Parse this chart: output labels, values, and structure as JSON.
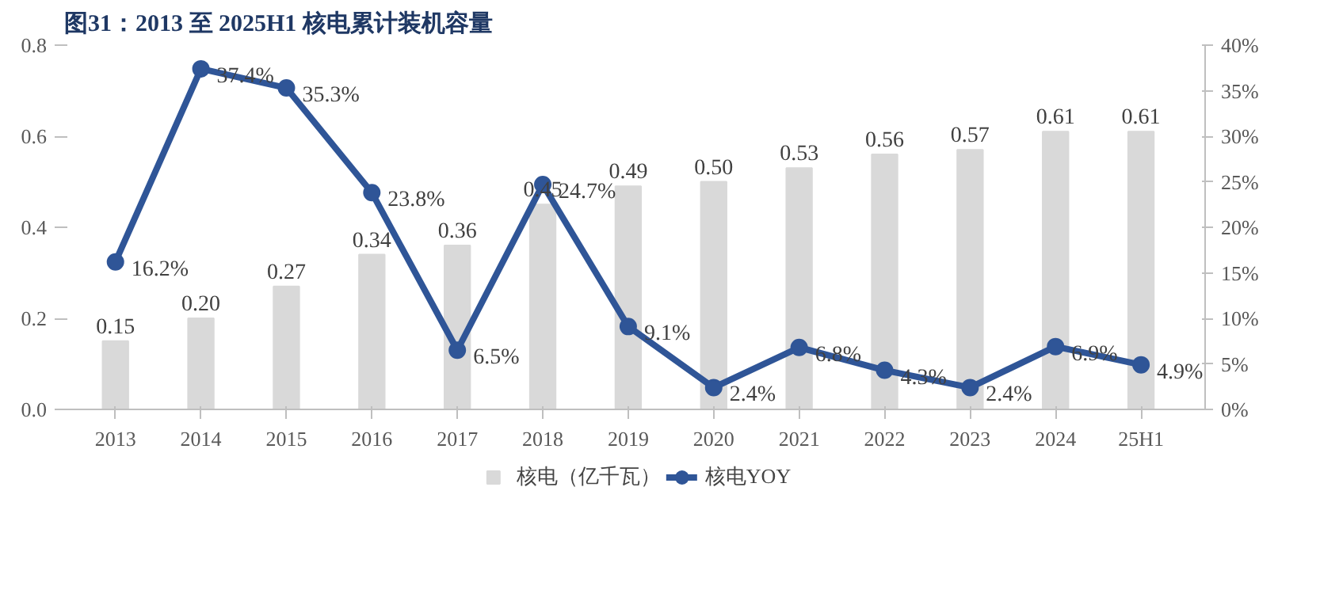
{
  "chart_data": {
    "type": "bar",
    "title": "图31：2013 至 2025H1 核电累计装机容量",
    "categories": [
      "2013",
      "2014",
      "2015",
      "2016",
      "2017",
      "2018",
      "2019",
      "2020",
      "2021",
      "2022",
      "2023",
      "2024",
      "25H1"
    ],
    "series": [
      {
        "name": "核电（亿千瓦）",
        "color": "#d9d9d9",
        "values": [
          0.15,
          0.2,
          0.27,
          0.34,
          0.36,
          0.45,
          0.49,
          0.5,
          0.53,
          0.56,
          0.57,
          0.61,
          0.61
        ],
        "value_labels": [
          "0.15",
          "0.20",
          "0.27",
          "0.34",
          "0.36",
          "0.45",
          "0.49",
          "0.50",
          "0.53",
          "0.56",
          "0.57",
          "0.61",
          "0.61"
        ]
      },
      {
        "name": "核电YOY",
        "type": "line",
        "axis": "y2",
        "color": "#2f5597",
        "marker": "circle",
        "values": [
          16.2,
          37.4,
          35.3,
          23.8,
          6.5,
          24.7,
          9.1,
          2.4,
          6.8,
          4.3,
          2.4,
          6.9,
          4.9
        ],
        "value_labels": [
          "16.2%",
          "37.4%",
          "35.3%",
          "23.8%",
          "6.5%",
          "24.7%",
          "9.1%",
          "2.4%",
          "6.8%",
          "4.3%",
          "2.4%",
          "6.9%",
          "4.9%"
        ]
      }
    ],
    "ylim": [
      0,
      0.8
    ],
    "yticks": [
      {
        "value": 0,
        "label": "0.0"
      },
      0.2,
      0.4,
      0.6,
      0.8
    ],
    "y2lim": [
      0,
      40
    ],
    "y2ticks": [
      {
        "value": 0,
        "label": "0%"
      },
      {
        "value": 5,
        "label": "5%"
      },
      {
        "value": 10,
        "label": "10%"
      },
      {
        "value": 15,
        "label": "15%"
      },
      {
        "value": 20,
        "label": "20%"
      },
      {
        "value": 25,
        "label": "25%"
      },
      {
        "value": 30,
        "label": "30%"
      },
      {
        "value": 35,
        "label": "35%"
      },
      {
        "value": 40,
        "label": "40%"
      }
    ],
    "grid": false,
    "legend": "bottom"
  }
}
